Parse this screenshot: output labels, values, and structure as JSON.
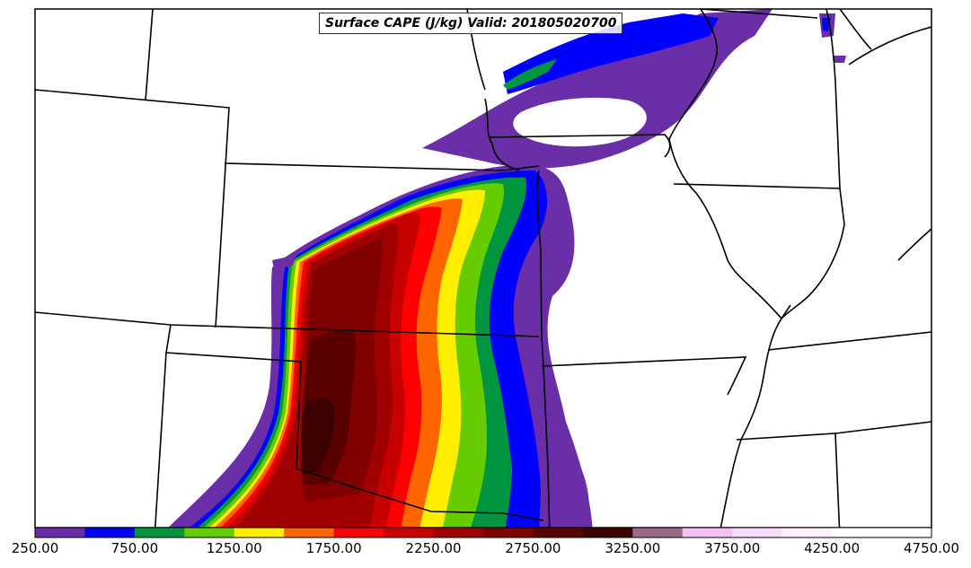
{
  "map": {
    "title": "Surface CAPE (J/kg) Valid: 201805020700"
  },
  "colorbar": {
    "colors": [
      "#6a2ea8",
      "#0000ff",
      "#00963f",
      "#66cc00",
      "#ffee00",
      "#ff6600",
      "#ff0000",
      "#c80000",
      "#a00000",
      "#800000",
      "#5a0000",
      "#3c0000",
      "#9b6a8a",
      "#f2c0f2",
      "#f9dcf9",
      "#fdeffd",
      "#ffffff",
      "#ffffff"
    ],
    "ticks": [
      "250.00",
      "750.00",
      "1250.00",
      "1750.00",
      "2250.00",
      "2750.00",
      "3250.00",
      "3750.00",
      "4250.00",
      "4750.00"
    ]
  }
}
